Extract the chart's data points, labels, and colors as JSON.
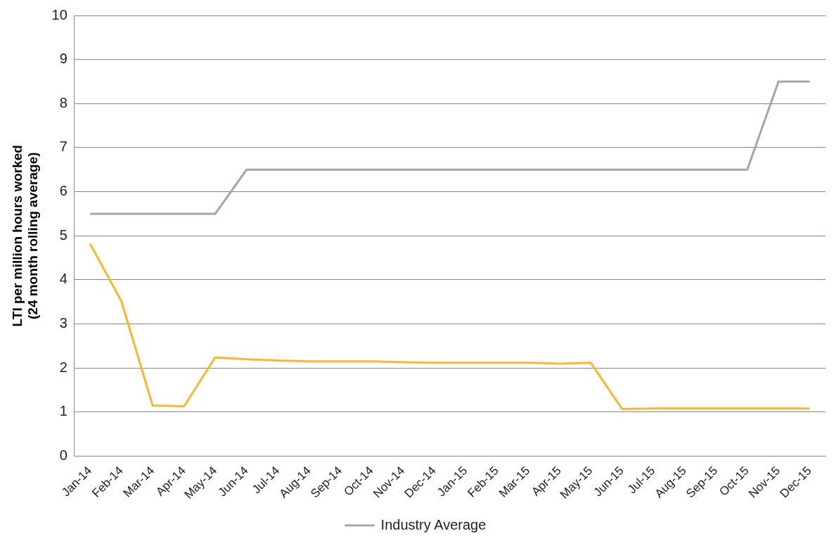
{
  "chart_data": {
    "type": "line",
    "ylabel": "LTI per million hours worked\n(24 month rolling average)",
    "categories": [
      "Jan-14",
      "Feb-14",
      "Mar-14",
      "Apr-14",
      "May-14",
      "Jun-14",
      "Jul-14",
      "Aug-14",
      "Sep-14",
      "Oct-14",
      "Nov-14",
      "Dec-14",
      "Jan-15",
      "Feb-15",
      "Mar-15",
      "Apr-15",
      "May-15",
      "Jun-15",
      "Jul-15",
      "Aug-15",
      "Sep-15",
      "Oct-15",
      "Nov-15",
      "Dec-15"
    ],
    "series": [
      {
        "color": "#ffb62d",
        "values": [
          4.82,
          3.52,
          1.15,
          1.13,
          2.24,
          2.2,
          2.17,
          2.15,
          2.15,
          2.15,
          2.13,
          2.12,
          2.12,
          2.12,
          2.12,
          2.1,
          2.12,
          1.07,
          1.08,
          1.08,
          1.08,
          1.08,
          1.08,
          1.08
        ]
      },
      {
        "name": "Industry Average",
        "color": "#a5a5a5",
        "values": [
          5.5,
          5.5,
          5.5,
          5.5,
          5.5,
          6.5,
          6.5,
          6.5,
          6.5,
          6.5,
          6.5,
          6.5,
          6.5,
          6.5,
          6.5,
          6.5,
          6.5,
          6.5,
          6.5,
          6.5,
          6.5,
          6.5,
          8.5,
          8.5
        ]
      }
    ],
    "ylim": [
      0,
      10
    ],
    "yticks": [
      0,
      1,
      2,
      3,
      4,
      5,
      6,
      7,
      8,
      9,
      10
    ],
    "grid": "y",
    "legend": "bottom",
    "marker": "none",
    "line_style": "solid"
  }
}
